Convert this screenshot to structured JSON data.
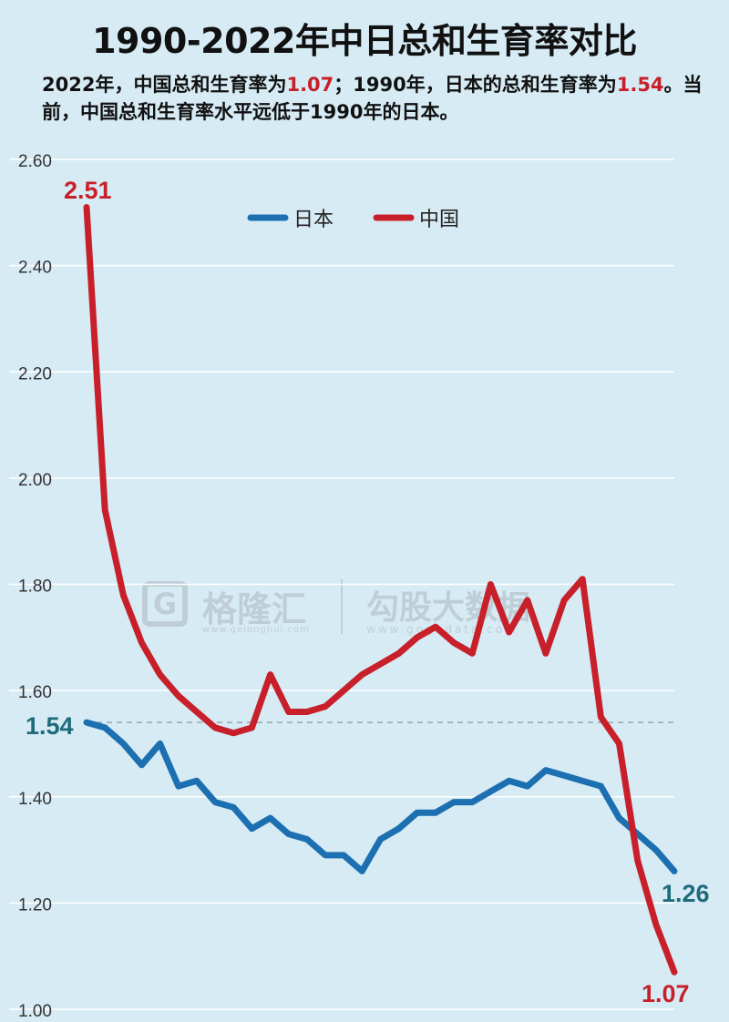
{
  "header": {
    "title": "1990-2022年中日总和生育率对比",
    "subtitle_parts": [
      "2022年，中国总和生育率为",
      "1.07",
      "；1990年，日本的总和生育率为",
      "1.54",
      "。当前，中国总和生育率水平远低于1990年的日本。"
    ]
  },
  "watermark": {
    "logo_letter": "G",
    "brand1": "格隆汇",
    "site1": "www.gelonghui.com",
    "brand2": "勾股大数据",
    "site2": "www.gogudata.com"
  },
  "colors": {
    "japan": "#1c6fb0",
    "china": "#c8202a",
    "label_teal": "#1f6b7b",
    "grid": "#ffffff"
  },
  "chart_data": {
    "type": "line",
    "title": "1990-2022年中日总和生育率对比",
    "xlabel": "",
    "ylabel": "",
    "x": [
      1990,
      1991,
      1992,
      1993,
      1994,
      1995,
      1996,
      1997,
      1998,
      1999,
      2000,
      2001,
      2002,
      2003,
      2004,
      2005,
      2006,
      2007,
      2008,
      2009,
      2010,
      2011,
      2012,
      2013,
      2014,
      2015,
      2016,
      2017,
      2018,
      2019,
      2020,
      2021,
      2022
    ],
    "ylim": [
      1.0,
      2.6
    ],
    "yticks": [
      "1.00",
      "1.20",
      "1.40",
      "1.60",
      "1.80",
      "2.00",
      "2.20",
      "2.40",
      "2.60"
    ],
    "grid": true,
    "legend_position": "top-center",
    "series": [
      {
        "name": "日本",
        "color": "#1c6fb0",
        "values": [
          1.54,
          1.53,
          1.5,
          1.46,
          1.5,
          1.42,
          1.43,
          1.39,
          1.38,
          1.34,
          1.36,
          1.33,
          1.32,
          1.29,
          1.29,
          1.26,
          1.32,
          1.34,
          1.37,
          1.37,
          1.39,
          1.39,
          1.41,
          1.43,
          1.42,
          1.45,
          1.44,
          1.43,
          1.42,
          1.36,
          1.33,
          1.3,
          1.26
        ]
      },
      {
        "name": "中国",
        "color": "#c8202a",
        "values": [
          2.51,
          1.94,
          1.78,
          1.69,
          1.63,
          1.59,
          1.56,
          1.53,
          1.52,
          1.53,
          1.63,
          1.56,
          1.56,
          1.57,
          1.6,
          1.63,
          1.65,
          1.67,
          1.7,
          1.72,
          1.69,
          1.67,
          1.8,
          1.71,
          1.77,
          1.67,
          1.77,
          1.81,
          1.55,
          1.5,
          1.28,
          1.16,
          1.07
        ]
      }
    ],
    "reference_line": {
      "y": 1.54,
      "style": "dashed"
    },
    "annotations": [
      {
        "text": "2.51",
        "series": "中国",
        "x": 1990,
        "y": 2.51,
        "color": "#c8202a"
      },
      {
        "text": "1.54",
        "series": "日本",
        "x": 1990,
        "y": 1.54,
        "color": "#1f6b7b"
      },
      {
        "text": "1.26",
        "series": "日本",
        "x": 2022,
        "y": 1.26,
        "color": "#1f6b7b"
      },
      {
        "text": "1.07",
        "series": "中国",
        "x": 2022,
        "y": 1.07,
        "color": "#c8202a"
      }
    ]
  }
}
